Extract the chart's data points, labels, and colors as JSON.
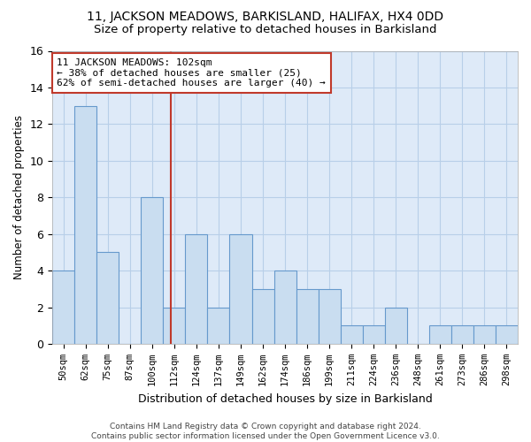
{
  "title1": "11, JACKSON MEADOWS, BARKISLAND, HALIFAX, HX4 0DD",
  "title2": "Size of property relative to detached houses in Barkisland",
  "xlabel": "Distribution of detached houses by size in Barkisland",
  "ylabel": "Number of detached properties",
  "categories": [
    "50sqm",
    "62sqm",
    "75sqm",
    "87sqm",
    "100sqm",
    "112sqm",
    "124sqm",
    "137sqm",
    "149sqm",
    "162sqm",
    "174sqm",
    "186sqm",
    "199sqm",
    "211sqm",
    "224sqm",
    "236sqm",
    "248sqm",
    "261sqm",
    "273sqm",
    "286sqm",
    "298sqm"
  ],
  "values": [
    4,
    13,
    5,
    0,
    8,
    2,
    6,
    2,
    6,
    3,
    4,
    3,
    3,
    1,
    1,
    2,
    0,
    1,
    1,
    1,
    1
  ],
  "bar_color": "#c9ddf0",
  "bar_edge_color": "#6699cc",
  "vline_x": 4.85,
  "vline_color": "#c0392b",
  "annotation_text": "11 JACKSON MEADOWS: 102sqm\n← 38% of detached houses are smaller (25)\n62% of semi-detached houses are larger (40) →",
  "annotation_box_color": "white",
  "annotation_box_edge_color": "#c0392b",
  "ylim": [
    0,
    16
  ],
  "yticks": [
    0,
    2,
    4,
    6,
    8,
    10,
    12,
    14,
    16
  ],
  "footer": "Contains HM Land Registry data © Crown copyright and database right 2024.\nContains public sector information licensed under the Open Government Licence v3.0.",
  "grid_color": "#b8cfe8",
  "background_color": "#deeaf8",
  "title1_fontsize": 10,
  "title2_fontsize": 9.5,
  "ann_fontsize": 8
}
